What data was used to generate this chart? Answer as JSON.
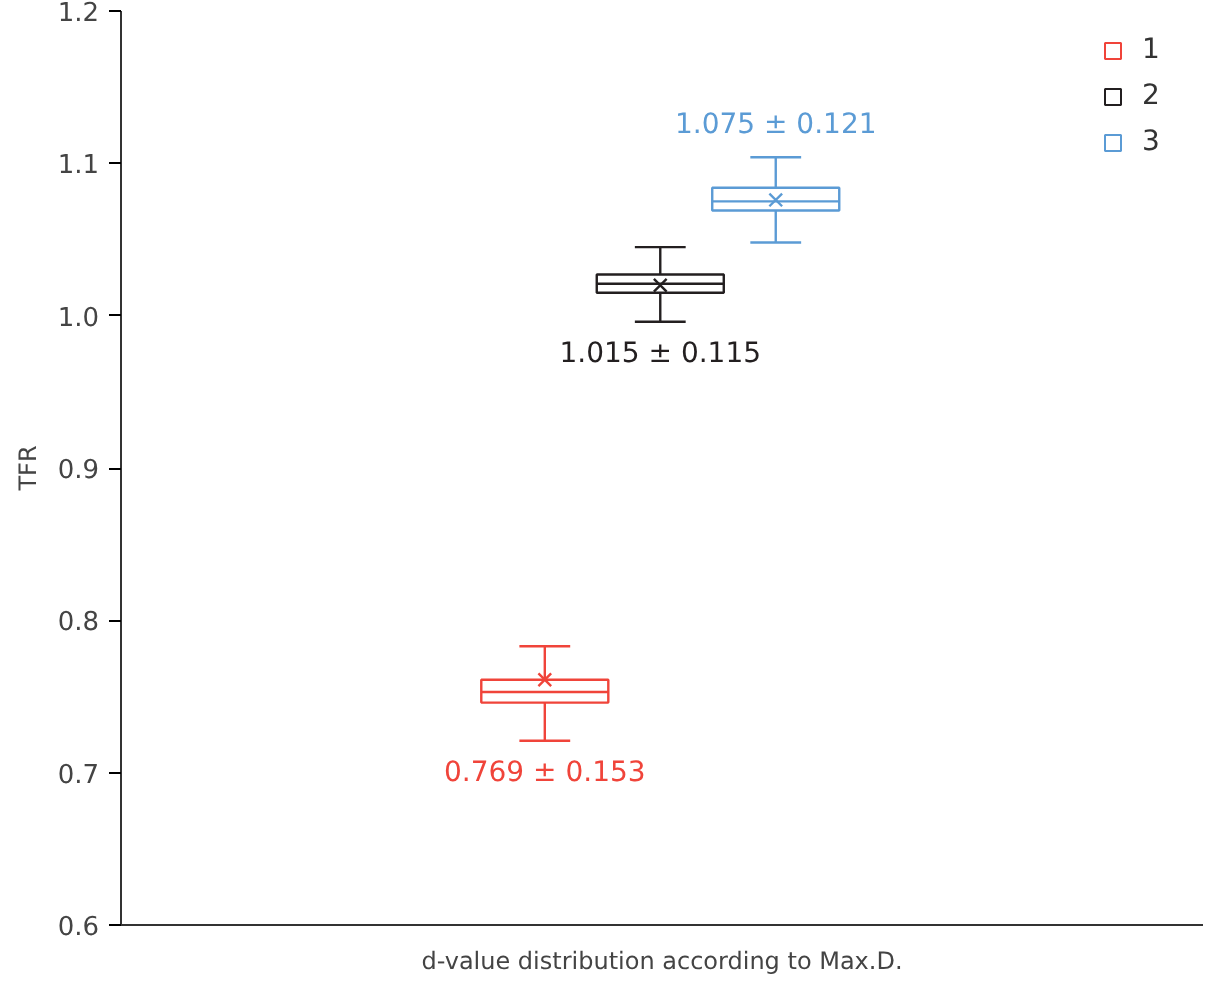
{
  "chart_data": {
    "type": "box",
    "xlabel": "d-value distribution according to Max.D.",
    "ylabel": "TFR",
    "categories": [
      null
    ],
    "series": [
      {
        "name": "1",
        "color": "#f0443a",
        "boxes": [
          {
            "low": 0.721,
            "q1": 0.746,
            "median": 0.753,
            "q3": 0.761,
            "high": 0.783,
            "mean": 0.761
          }
        ]
      },
      {
        "name": "2",
        "color": "#231f20",
        "boxes": [
          {
            "low": 0.996,
            "q1": 1.015,
            "median": 1.021,
            "q3": 1.027,
            "high": 1.045,
            "mean": 1.02
          }
        ]
      },
      {
        "name": "3",
        "color": "#5b9bd5",
        "boxes": [
          {
            "low": 1.048,
            "q1": 1.069,
            "median": 1.075,
            "q3": 1.084,
            "high": 1.104,
            "mean": 1.076
          }
        ]
      }
    ],
    "annotations": [
      "0.769 ± 0.153",
      "1.015 ± 0.115",
      "1.075 ± 0.121"
    ],
    "ylim": [
      0.6,
      1.2
    ],
    "yticks": [
      0.6,
      0.7,
      0.8,
      0.9,
      {
        "value": 1.0,
        "label": "1.0"
      },
      1.1,
      1.2
    ],
    "tick_labels": "y",
    "grid": false,
    "legend": "top right"
  }
}
